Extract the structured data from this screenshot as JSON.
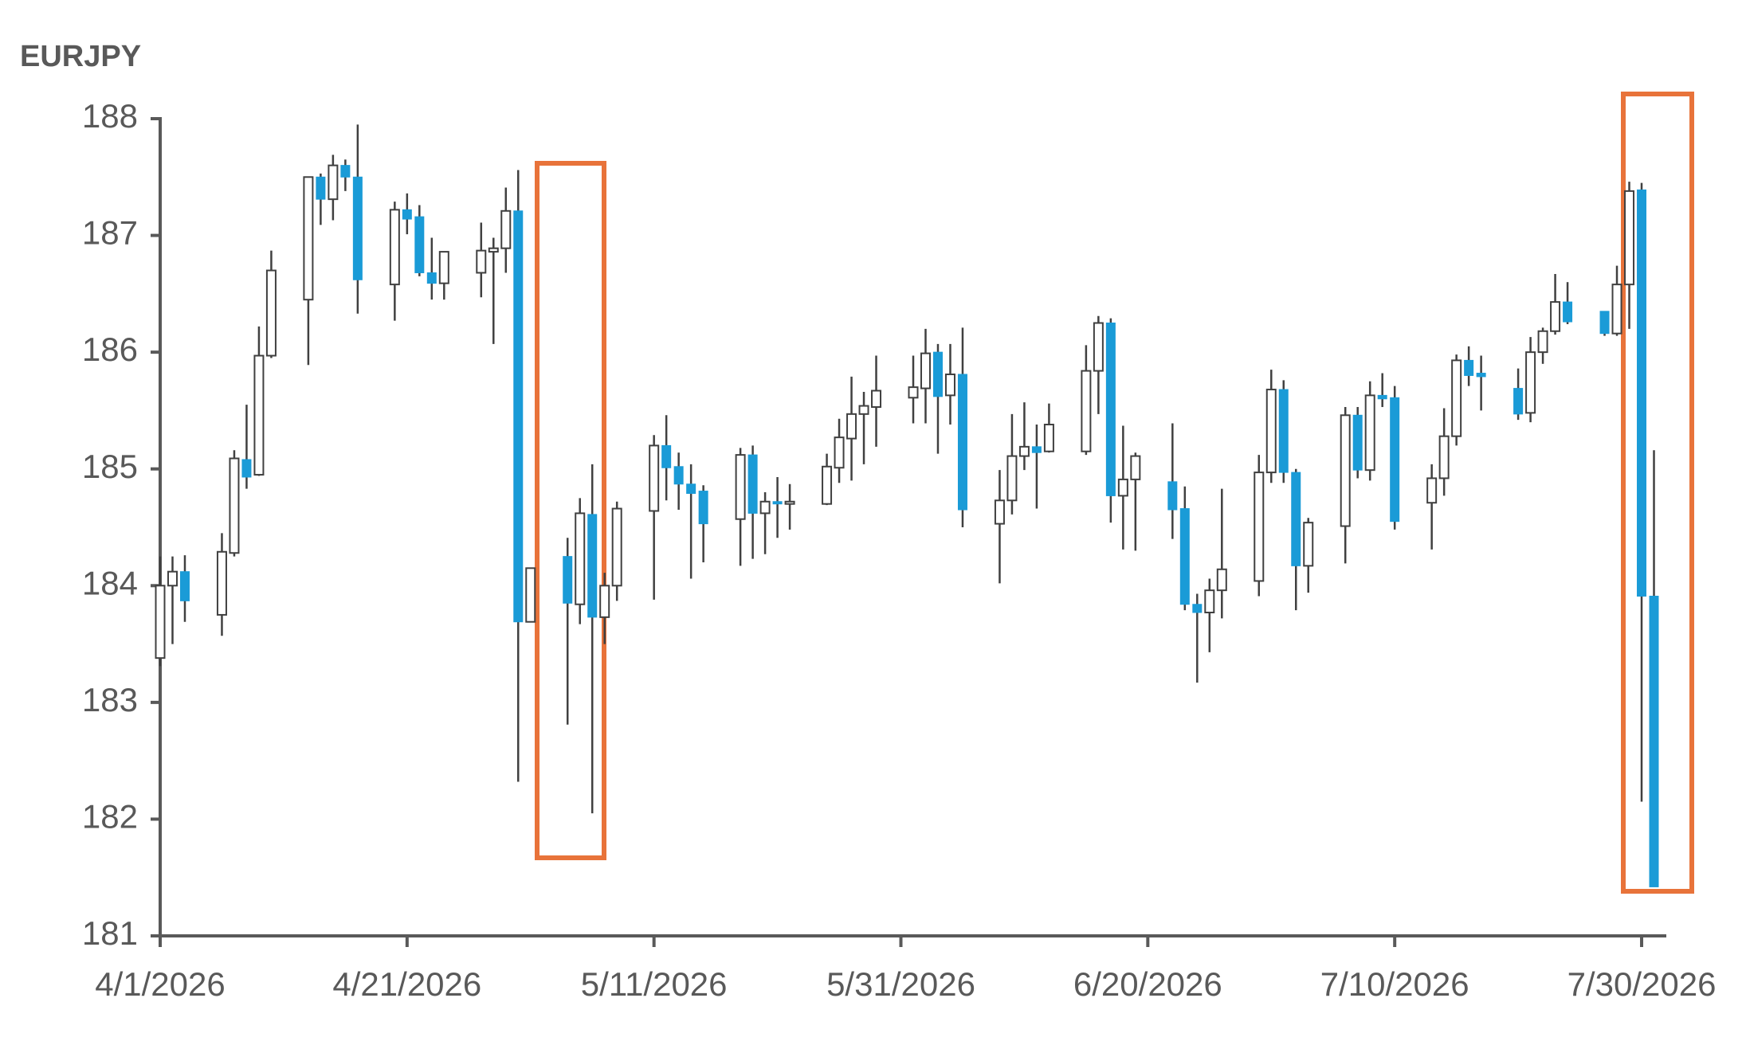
{
  "chart_data": {
    "type": "candlestick",
    "title": "EURJPY",
    "x": [
      "4/1/2026",
      "4/2/2026",
      "4/3/2026",
      "4/6/2026",
      "4/7/2026",
      "4/8/2026",
      "4/9/2026",
      "4/10/2026",
      "4/13/2026",
      "4/14/2026",
      "4/15/2026",
      "4/16/2026",
      "4/17/2026",
      "4/20/2026",
      "4/21/2026",
      "4/22/2026",
      "4/23/2026",
      "4/24/2026",
      "4/27/2026",
      "4/28/2026",
      "4/29/2026",
      "4/30/2026",
      "5/1/2026",
      "5/4/2026",
      "5/5/2026",
      "5/6/2026",
      "5/7/2026",
      "5/8/2026",
      "5/11/2026",
      "5/12/2026",
      "5/13/2026",
      "5/14/2026",
      "5/15/2026",
      "5/18/2026",
      "5/19/2026",
      "5/20/2026",
      "5/21/2026",
      "5/22/2026",
      "5/25/2026",
      "5/26/2026",
      "5/27/2026",
      "5/28/2026",
      "5/29/2026",
      "6/1/2026",
      "6/2/2026",
      "6/3/2026",
      "6/4/2026",
      "6/5/2026",
      "6/8/2026",
      "6/9/2026",
      "6/10/2026",
      "6/11/2026",
      "6/12/2026",
      "6/15/2026",
      "6/16/2026",
      "6/17/2026",
      "6/18/2026",
      "6/19/2026",
      "6/22/2026",
      "6/23/2026",
      "6/24/2026",
      "6/25/2026",
      "6/26/2026",
      "6/29/2026",
      "6/30/2026",
      "7/1/2026",
      "7/2/2026",
      "7/3/2026",
      "7/6/2026",
      "7/7/2026",
      "7/8/2026",
      "7/9/2026",
      "7/10/2026",
      "7/13/2026",
      "7/14/2026",
      "7/15/2026",
      "7/16/2026",
      "7/17/2026",
      "7/20/2026",
      "7/21/2026",
      "7/22/2026",
      "7/23/2026",
      "7/24/2026",
      "7/27/2026",
      "7/28/2026",
      "7/29/2026",
      "7/30/2026",
      "7/31/2026"
    ],
    "open": [
      183.38,
      184.0,
      184.12,
      183.75,
      184.28,
      185.08,
      184.95,
      185.97,
      186.45,
      187.5,
      187.31,
      187.6,
      187.5,
      186.58,
      187.22,
      187.16,
      186.68,
      186.59,
      186.68,
      186.86,
      186.89,
      187.21,
      183.69,
      184.25,
      183.84,
      184.61,
      183.73,
      184.0,
      184.64,
      185.2,
      185.02,
      184.87,
      184.81,
      184.57,
      185.12,
      184.62,
      184.72,
      184.7,
      184.7,
      185.01,
      185.26,
      185.47,
      185.53,
      185.61,
      185.69,
      186.0,
      185.63,
      185.81,
      184.53,
      184.73,
      185.11,
      185.19,
      185.15,
      185.15,
      185.84,
      186.25,
      184.77,
      184.91,
      184.89,
      184.66,
      183.84,
      183.77,
      183.96,
      184.04,
      184.97,
      185.68,
      184.97,
      184.17,
      184.51,
      185.46,
      184.99,
      185.63,
      185.61,
      184.71,
      184.92,
      185.28,
      185.93,
      185.82,
      185.69,
      185.48,
      186.0,
      186.18,
      186.43,
      186.35,
      186.16,
      186.58,
      187.39,
      183.91
    ],
    "high": [
      184.25,
      184.25,
      184.26,
      184.45,
      185.16,
      185.55,
      186.22,
      186.87,
      187.5,
      187.53,
      187.69,
      187.65,
      187.95,
      187.29,
      187.36,
      187.26,
      186.98,
      186.86,
      187.11,
      186.98,
      187.41,
      187.56,
      184.15,
      184.41,
      184.75,
      185.04,
      184.11,
      184.72,
      185.29,
      185.46,
      185.14,
      185.04,
      184.86,
      185.18,
      185.2,
      184.8,
      184.93,
      184.87,
      185.13,
      185.43,
      185.79,
      185.66,
      185.97,
      185.97,
      186.2,
      186.07,
      186.07,
      186.21,
      184.99,
      185.47,
      185.57,
      185.38,
      185.56,
      186.06,
      186.31,
      186.29,
      185.37,
      185.14,
      185.39,
      184.85,
      183.93,
      184.06,
      184.83,
      185.12,
      185.85,
      185.76,
      185.0,
      184.58,
      185.53,
      185.53,
      185.75,
      185.82,
      185.71,
      185.04,
      185.52,
      185.98,
      186.05,
      185.97,
      185.86,
      186.13,
      186.21,
      186.67,
      186.6,
      186.35,
      186.74,
      187.46,
      187.45,
      185.16
    ],
    "low": [
      183.31,
      183.5,
      183.69,
      183.57,
      184.25,
      184.83,
      184.94,
      185.95,
      185.89,
      187.09,
      187.13,
      187.38,
      186.33,
      186.27,
      187.01,
      186.65,
      186.45,
      186.45,
      186.47,
      186.07,
      186.68,
      182.32,
      183.69,
      182.81,
      183.67,
      182.05,
      183.5,
      183.87,
      183.88,
      184.73,
      184.65,
      184.06,
      184.2,
      184.17,
      184.23,
      184.27,
      184.41,
      184.48,
      184.69,
      184.88,
      184.9,
      185.04,
      185.19,
      185.39,
      185.39,
      185.13,
      185.38,
      184.5,
      184.02,
      184.61,
      184.99,
      184.66,
      185.14,
      185.12,
      185.47,
      184.54,
      184.31,
      184.3,
      184.4,
      183.79,
      183.17,
      183.43,
      183.72,
      183.91,
      184.88,
      184.88,
      183.79,
      183.94,
      184.19,
      184.92,
      184.9,
      185.53,
      184.48,
      184.31,
      184.77,
      185.2,
      185.71,
      185.5,
      185.42,
      185.4,
      185.9,
      186.15,
      186.24,
      186.14,
      186.14,
      186.2,
      182.15,
      181.42
    ],
    "close": [
      184.0,
      184.12,
      183.87,
      184.29,
      185.09,
      184.93,
      185.97,
      186.7,
      187.5,
      187.31,
      187.6,
      187.5,
      186.62,
      187.22,
      187.14,
      186.68,
      186.59,
      186.86,
      186.87,
      186.89,
      187.21,
      183.69,
      184.15,
      183.85,
      184.62,
      183.73,
      184.0,
      184.66,
      185.2,
      185.01,
      184.87,
      184.79,
      184.53,
      185.12,
      184.62,
      184.72,
      184.7,
      184.72,
      185.02,
      185.27,
      185.47,
      185.54,
      185.67,
      185.7,
      185.99,
      185.62,
      185.81,
      184.65,
      184.73,
      185.11,
      185.19,
      185.14,
      185.38,
      185.84,
      186.25,
      184.77,
      184.91,
      185.11,
      184.65,
      183.84,
      183.77,
      183.96,
      184.14,
      184.97,
      185.68,
      184.97,
      184.17,
      184.54,
      185.46,
      184.99,
      185.63,
      185.6,
      184.55,
      184.92,
      185.28,
      185.93,
      185.8,
      185.79,
      185.47,
      186.0,
      186.18,
      186.43,
      186.26,
      186.16,
      186.58,
      187.38,
      183.91,
      181.42
    ],
    "up_color": "#ffffff",
    "down_color": "#1a9bd7",
    "xlim": [
      "4/1/2026",
      "8/1/2026"
    ],
    "xticks": [
      "4/1/2026",
      "4/21/2026",
      "5/11/2026",
      "5/31/2026",
      "6/20/2026",
      "7/10/2026",
      "7/30/2026"
    ],
    "ylim": [
      181,
      188
    ],
    "yticks": [
      181,
      182,
      183,
      184,
      185,
      186,
      187,
      188
    ]
  }
}
